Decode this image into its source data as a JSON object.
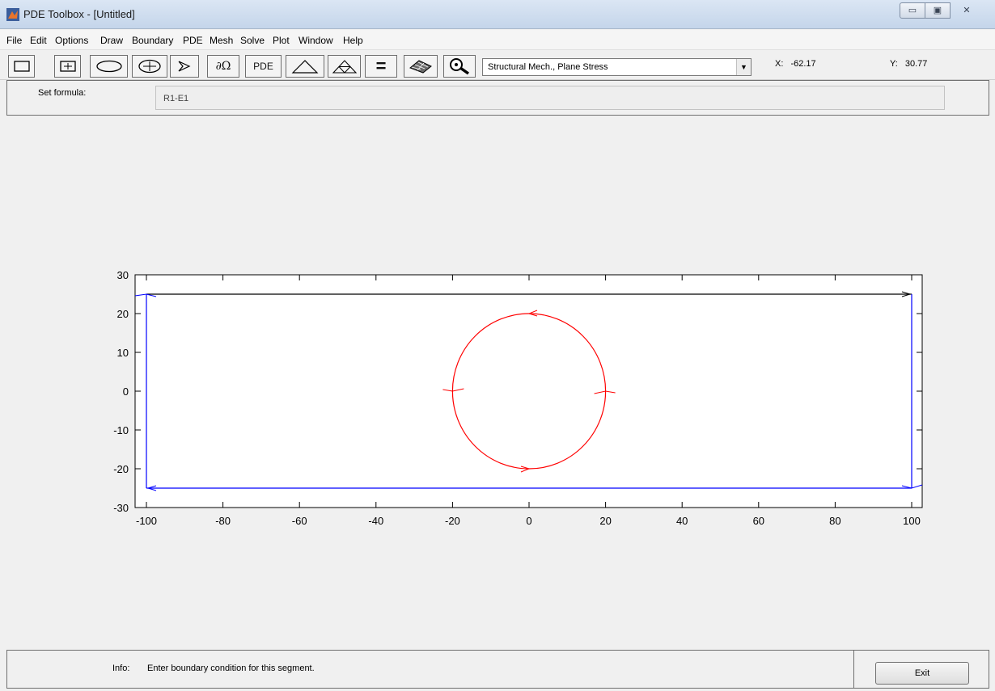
{
  "window": {
    "title": "PDE Toolbox - [Untitled]",
    "controls": [
      "minimize",
      "maximize",
      "close"
    ]
  },
  "menubar": {
    "items": [
      "File",
      "Edit",
      "Options",
      "Draw",
      "Boundary",
      "PDE",
      "Mesh",
      "Solve",
      "Plot",
      "Window",
      "Help"
    ]
  },
  "toolbar": {
    "buttons": [
      {
        "name": "rectangle-icon"
      },
      {
        "name": "rectangle-centered-icon"
      },
      {
        "name": "ellipse-icon"
      },
      {
        "name": "ellipse-centered-icon"
      },
      {
        "name": "polygon-icon"
      },
      {
        "name": "boundary-mode-icon",
        "label": "∂Ω"
      },
      {
        "name": "pde-spec-button",
        "label": "PDE"
      },
      {
        "name": "init-mesh-icon"
      },
      {
        "name": "refine-mesh-icon"
      },
      {
        "name": "solve-icon",
        "label": "="
      },
      {
        "name": "plot-icon"
      },
      {
        "name": "zoom-icon"
      }
    ],
    "application_mode": "Structural Mech., Plane Stress",
    "coord_x_label": "X:",
    "coord_x_value": "-62.17",
    "coord_y_label": "Y:",
    "coord_y_value": "30.77"
  },
  "formula": {
    "label": "Set formula:",
    "value": "R1-E1"
  },
  "chart_data": {
    "type": "geometry",
    "xlim": [
      -100,
      100
    ],
    "ylim": [
      -30,
      30
    ],
    "x_ticks": [
      "-100",
      "-80",
      "-60",
      "-40",
      "-20",
      "0",
      "20",
      "40",
      "60",
      "80",
      "100"
    ],
    "y_ticks": [
      "30",
      "20",
      "10",
      "0",
      "-10",
      "-20",
      "-30"
    ],
    "shapes": [
      {
        "id": "R1",
        "kind": "rectangle",
        "xmin": -100,
        "xmax": 100,
        "ymin": -25,
        "ymax": 25,
        "color": "#0000ff",
        "top_edge_color": "#000000"
      },
      {
        "id": "E1",
        "kind": "circle",
        "cx": 0,
        "cy": 0,
        "r": 20,
        "color": "#ff0000"
      }
    ],
    "grid": false
  },
  "info": {
    "label": "Info:",
    "text": "Enter boundary condition for this segment.",
    "exit_label": "Exit"
  },
  "colors": {
    "boundary_dirichlet": "#ff0000",
    "boundary_neumann": "#0000ff",
    "selected_boundary": "#000000"
  }
}
